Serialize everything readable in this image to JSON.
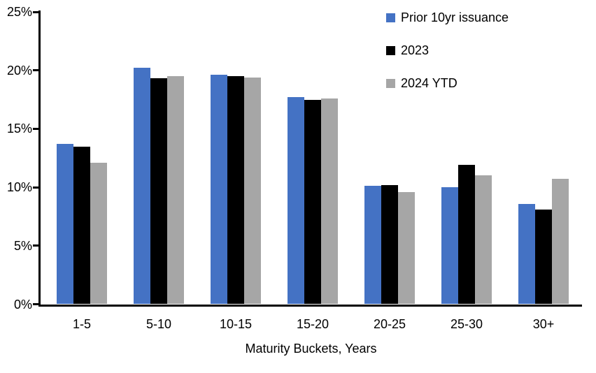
{
  "chart_data": {
    "type": "bar",
    "title": "",
    "categories": [
      "1-5",
      "5-10",
      "10-15",
      "15-20",
      "20-25",
      "25-30",
      "30+"
    ],
    "series": [
      {
        "name": "Prior 10yr issuance",
        "color": "#4472C4",
        "values": [
          13.7,
          20.2,
          19.6,
          17.7,
          10.1,
          10.0,
          8.6
        ]
      },
      {
        "name": "2023",
        "color": "#000000",
        "values": [
          13.5,
          19.3,
          19.5,
          17.5,
          10.2,
          11.9,
          8.1
        ]
      },
      {
        "name": "2024 YTD",
        "color": "#A6A6A6",
        "values": [
          12.1,
          19.5,
          19.4,
          17.6,
          9.6,
          11.0,
          10.7
        ]
      }
    ],
    "xlabel": "Maturity Buckets, Years",
    "ylabel": "",
    "y_axis": {
      "min": 0,
      "max": 25,
      "step": 5,
      "tick_labels": [
        "0%",
        "5%",
        "10%",
        "15%",
        "20%",
        "25%"
      ]
    },
    "legend": {
      "position": "top-right",
      "entries": [
        "Prior 10yr issuance",
        "2023",
        "2024 YTD"
      ]
    },
    "grid": false,
    "axis_color": "#000000",
    "background_color": "#FFFFFF"
  }
}
